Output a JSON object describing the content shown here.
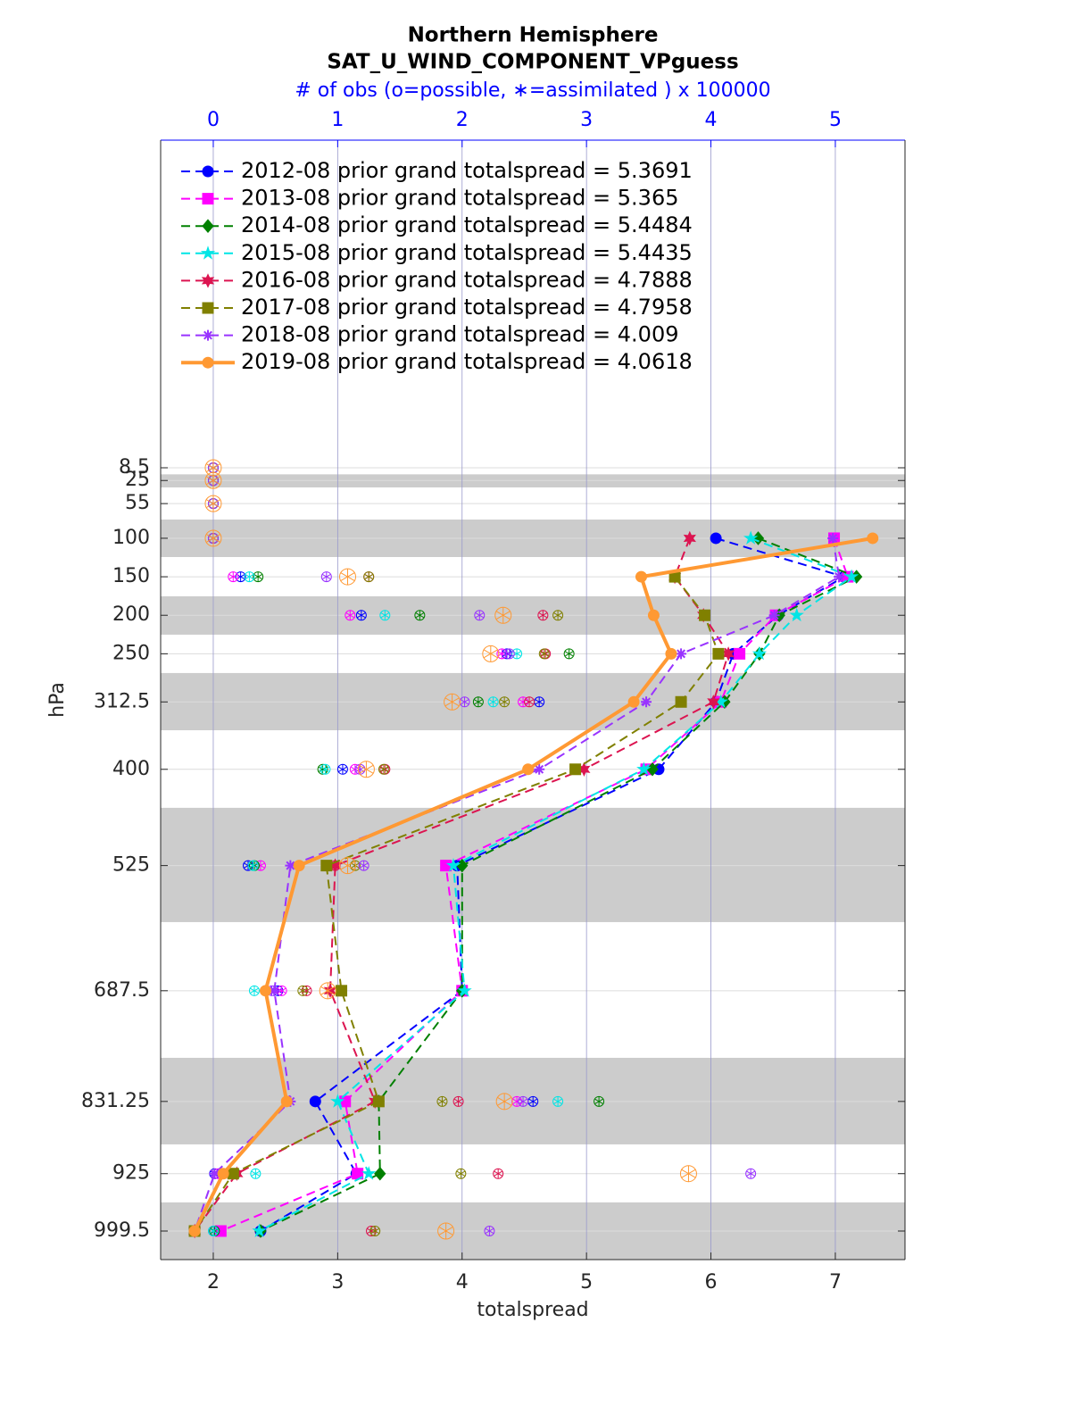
{
  "chart_data": {
    "type": "line",
    "title": "Northern Hemisphere",
    "subtitle": "SAT_U_WIND_COMPONENT_VPguess",
    "x2label": "# of obs (o=possible, ∗=assimilated ) x 100000",
    "xlabel": "totalspread",
    "ylabel": "hPa",
    "xlim": [
      1.577,
      7.56
    ],
    "xticks": [
      2,
      3,
      4,
      5,
      6,
      7
    ],
    "x2lim": [
      -0.423,
      5.56
    ],
    "x2ticks": [
      0,
      1,
      2,
      3,
      4,
      5
    ],
    "ylim": [
      -416.9,
      1036.6
    ],
    "yreverse": true,
    "yticks": [
      8.5,
      25,
      55,
      100,
      150,
      200,
      250,
      312.5,
      400,
      525,
      687.5,
      831.25,
      925,
      999.5
    ],
    "y": [
      8.5,
      25,
      55,
      100,
      150,
      200,
      250,
      312.5,
      400,
      525,
      687.5,
      831.25,
      925,
      999.5
    ],
    "bands": [
      [
        17,
        34
      ],
      [
        75.7,
        124.4
      ],
      [
        175.4,
        225.2
      ],
      [
        275,
        349.3
      ],
      [
        450,
        598.4
      ],
      [
        774.6,
        887
      ],
      [
        962.3,
        1036.6
      ]
    ],
    "grid": true,
    "legend": "upper left",
    "series": [
      {
        "name": "2012-08 prior grand totalspread = 5.3691",
        "color": "#0000ff",
        "marker": "circle",
        "style": "dashed",
        "values": [
          null,
          null,
          null,
          6.04,
          7.07,
          6.54,
          6.18,
          6.04,
          5.58,
          3.96,
          4.0,
          2.82,
          3.15,
          2.38
        ],
        "obs": [
          0,
          0,
          0,
          0,
          0.22,
          1.19,
          2.36,
          2.62,
          1.04,
          0.28,
          0.52,
          2.57,
          0.01,
          0.01
        ]
      },
      {
        "name": "2013-08 prior grand totalspread = 5.365",
        "color": "#ff00ff",
        "marker": "square",
        "style": "dashed",
        "values": [
          null,
          null,
          null,
          6.99,
          7.1,
          6.52,
          6.23,
          6.08,
          5.48,
          3.87,
          4.0,
          3.06,
          3.16,
          2.06
        ],
        "obs": [
          0,
          0,
          0,
          0,
          0.16,
          1.1,
          2.32,
          2.49,
          1.14,
          0.38,
          0.55,
          2.44,
          0.04,
          0
        ]
      },
      {
        "name": "2014-08 prior grand totalspread = 5.4484",
        "color": "#008000",
        "marker": "diamond",
        "style": "dashed",
        "values": [
          null,
          null,
          null,
          6.38,
          7.17,
          6.55,
          6.39,
          6.11,
          5.53,
          4.0,
          4.0,
          3.33,
          3.34,
          2.38
        ],
        "obs": [
          0,
          0,
          0,
          0,
          0.36,
          1.66,
          2.86,
          2.13,
          0.88,
          0.33,
          0.42,
          3.1,
          0.18,
          0.01
        ]
      },
      {
        "name": "2015-08 prior grand totalspread = 5.4435",
        "color": "#00e5e5",
        "marker": "star",
        "style": "dashed",
        "values": [
          null,
          null,
          null,
          6.32,
          7.13,
          6.69,
          6.39,
          6.08,
          5.46,
          3.93,
          4.02,
          3.0,
          3.25,
          2.37
        ],
        "obs": [
          0,
          0,
          0,
          0,
          0.29,
          1.38,
          2.44,
          2.25,
          0.9,
          0.32,
          0.33,
          2.77,
          0.34,
          0
        ]
      },
      {
        "name": "2016-08 prior grand totalspread = 4.7888",
        "color": "#dc1450",
        "marker": "hexagram",
        "style": "dashed",
        "values": [
          null,
          null,
          null,
          5.83,
          5.71,
          5.94,
          6.14,
          6.02,
          4.98,
          2.98,
          2.94,
          3.3,
          2.19,
          1.85
        ],
        "obs": [
          0,
          0,
          0,
          0,
          1.25,
          2.65,
          2.67,
          2.54,
          1.38,
          0.98,
          0.75,
          1.97,
          2.29,
          1.27
        ]
      },
      {
        "name": "2017-08 prior grand totalspread = 4.7958",
        "color": "#808000",
        "marker": "square",
        "style": "dashed",
        "values": [
          null,
          null,
          null,
          null,
          5.71,
          5.95,
          6.06,
          5.76,
          4.91,
          2.91,
          3.03,
          3.33,
          2.16,
          1.85
        ],
        "obs": [
          0,
          0,
          0,
          0,
          1.25,
          2.77,
          2.66,
          2.34,
          1.37,
          1.14,
          0.72,
          1.84,
          1.99,
          1.3
        ]
      },
      {
        "name": "2018-08 prior grand totalspread = 4.009",
        "color": "#9933ff",
        "marker": "asterisk",
        "style": "dashed",
        "values": [
          null,
          null,
          null,
          6.98,
          7.03,
          6.51,
          5.76,
          5.48,
          4.62,
          2.62,
          2.49,
          2.62,
          2.01,
          1.85
        ],
        "obs": [
          0,
          0,
          0,
          0,
          0.91,
          2.14,
          2.38,
          2.02,
          1.18,
          1.21,
          0.47,
          2.49,
          4.32,
          2.22
        ]
      },
      {
        "name": "2019-08 prior grand totalspread = 4.0618",
        "color": "#ff9933",
        "marker": "circle",
        "style": "solid",
        "values": [
          null,
          null,
          null,
          7.3,
          5.44,
          5.54,
          5.68,
          5.38,
          4.53,
          2.69,
          2.42,
          2.59,
          2.08,
          1.85
        ],
        "obs": [
          0,
          0,
          0,
          0,
          1.08,
          2.33,
          2.23,
          1.92,
          1.23,
          1.08,
          0.92,
          2.34,
          3.82,
          1.87
        ]
      }
    ]
  }
}
